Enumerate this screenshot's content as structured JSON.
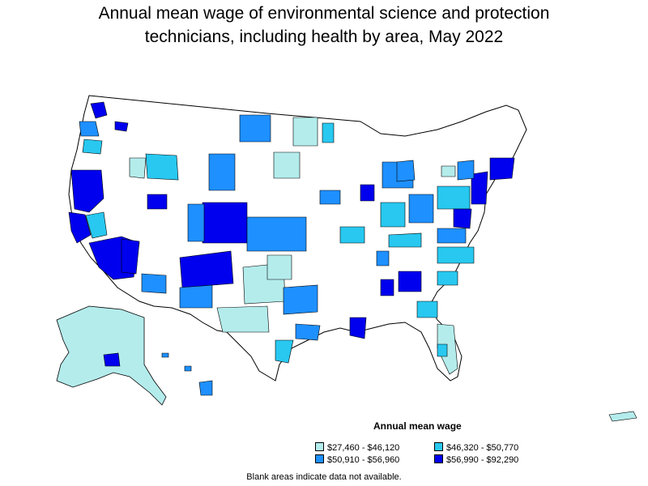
{
  "title_line1": "Annual mean wage of environmental science and protection",
  "title_line2": "technicians, including health by area, May 2022",
  "legend": {
    "title": "Annual mean wage",
    "items": [
      {
        "label": "$27,460 - $46,120",
        "color": "#b4ecec"
      },
      {
        "label": "$46,320 - $50,770",
        "color": "#28c8f0"
      },
      {
        "label": "$50,910 - $56,960",
        "color": "#1e90ff"
      },
      {
        "label": "$56,990 - $92,290",
        "color": "#0000ee"
      }
    ]
  },
  "footnote": "Blank areas indicate data not available.",
  "colors": {
    "blank": "#ffffff",
    "border": "#000000"
  }
}
